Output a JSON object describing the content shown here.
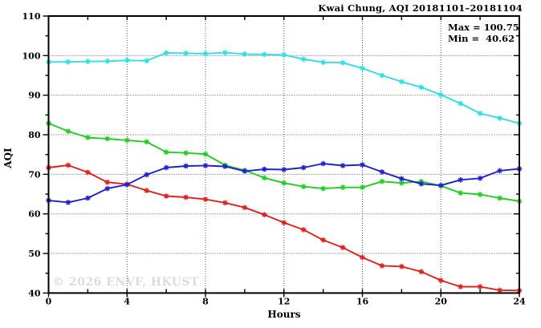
{
  "header": {
    "title": "Kwai Chung, AQI 20181101–20181104"
  },
  "annotations": {
    "max_label": "Max = 100.75",
    "min_label": "Min =  40.62"
  },
  "watermark": "© 2026 ENVF, HKUST",
  "chart_data": {
    "type": "line",
    "title": "Kwai Chung, AQI 20181101–20181104",
    "xlabel": "Hours",
    "ylabel": "AQI",
    "xlim": [
      0,
      24
    ],
    "ylim": [
      40,
      110
    ],
    "xticks_major": [
      0,
      4,
      8,
      12,
      16,
      20,
      24
    ],
    "xticks_minor": [
      2,
      6,
      10,
      14,
      18,
      22
    ],
    "yticks_major": [
      40,
      50,
      60,
      70,
      80,
      90,
      100,
      110
    ],
    "yticks_minor": [
      45,
      55,
      65,
      75,
      85,
      95,
      105
    ],
    "grid": {
      "x_values": [
        4,
        8,
        12,
        16,
        20
      ],
      "y_values": [
        50,
        60,
        70,
        80,
        90,
        100
      ],
      "style": "dotted",
      "color": "#555555"
    },
    "legend": "none",
    "marker": "asterisk",
    "axis_color": "#000000",
    "x": [
      0,
      1,
      2,
      3,
      4,
      5,
      6,
      7,
      8,
      9,
      10,
      11,
      12,
      13,
      14,
      15,
      16,
      17,
      18,
      19,
      20,
      21,
      22,
      23,
      24
    ],
    "series": [
      {
        "name": "cyan",
        "color": "#2fe0e0",
        "values": [
          98.4,
          98.4,
          98.5,
          98.6,
          98.8,
          98.7,
          100.7,
          100.6,
          100.5,
          100.75,
          100.4,
          100.3,
          100.2,
          99.1,
          98.3,
          98.2,
          96.8,
          95.0,
          93.4,
          92.0,
          90.1,
          87.9,
          85.4,
          84.2,
          82.9
        ]
      },
      {
        "name": "green",
        "color": "#22cc22",
        "values": [
          82.9,
          80.9,
          79.3,
          79.0,
          78.6,
          78.2,
          75.6,
          75.4,
          75.1,
          72.3,
          71.0,
          69.1,
          67.8,
          66.9,
          66.4,
          66.7,
          66.7,
          68.2,
          67.8,
          68.2,
          67.1,
          65.3,
          64.9,
          64.0,
          63.2
        ]
      },
      {
        "name": "red",
        "color": "#e02020",
        "values": [
          71.7,
          72.3,
          70.5,
          68.0,
          67.5,
          65.9,
          64.5,
          64.2,
          63.7,
          62.8,
          61.6,
          59.8,
          57.8,
          56.0,
          53.4,
          51.5,
          49.0,
          46.9,
          46.7,
          45.4,
          43.2,
          41.6,
          41.6,
          40.7,
          40.62
        ]
      },
      {
        "name": "blue",
        "color": "#2020cc",
        "values": [
          63.4,
          62.9,
          64.0,
          66.4,
          67.4,
          69.9,
          71.7,
          72.1,
          72.2,
          72.0,
          70.8,
          71.3,
          71.2,
          71.7,
          72.7,
          72.2,
          72.4,
          70.6,
          68.9,
          67.6,
          67.2,
          68.6,
          69.0,
          70.9,
          71.4
        ]
      }
    ],
    "stats": {
      "max": 100.75,
      "min": 40.62
    }
  }
}
